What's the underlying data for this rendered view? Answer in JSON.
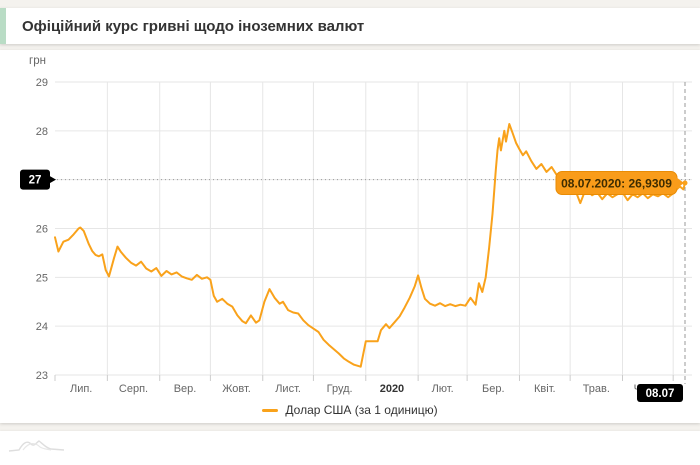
{
  "header": {
    "title": "Офіційний курс гривні щодо іноземних валют"
  },
  "colors": {
    "line": "#f9a21b",
    "grid": "#e6e6e6",
    "tick": "#cccccc",
    "axis_text": "#666666",
    "crosshair": "#999999",
    "crosshair_label_bg": "#000000",
    "crosshair_label_text": "#ffffff",
    "tooltip_bg": "#f99c1a",
    "tooltip_border": "#e98c05",
    "tooltip_text": "#3e2c00",
    "accent_strip": "#b9dcc5"
  },
  "chart_data": {
    "type": "line",
    "title": "Офіційний курс гривні щодо іноземних валют",
    "y_axis_title": "грн",
    "ylim": [
      23,
      29
    ],
    "y_ticks": [
      23,
      24,
      25,
      26,
      27,
      28,
      29
    ],
    "grid": true,
    "legend_position": "bottom-center",
    "x_range_days": 373,
    "x_start_date": "01.07.2019",
    "x_end_date": "08.07.2020",
    "month_boundaries_days": [
      0,
      31,
      62,
      92,
      123,
      153,
      184,
      215,
      244,
      275,
      305,
      336,
      366
    ],
    "x_tick_labels": [
      "Лип.",
      "Серп.",
      "Вер.",
      "Жовт.",
      "Лист.",
      "Груд.",
      "2020",
      "Лют.",
      "Бер.",
      "Квіт.",
      "Трав.",
      "Черв."
    ],
    "series": [
      {
        "name": "Долар США (за 1 одиницю)",
        "color": "#f9a21b",
        "points": [
          [
            0,
            25.82
          ],
          [
            2,
            25.53
          ],
          [
            5,
            25.73
          ],
          [
            8,
            25.77
          ],
          [
            11,
            25.88
          ],
          [
            14,
            26.0
          ],
          [
            15,
            26.02
          ],
          [
            17,
            25.95
          ],
          [
            20,
            25.68
          ],
          [
            22,
            25.54
          ],
          [
            24,
            25.46
          ],
          [
            26,
            25.43
          ],
          [
            28,
            25.47
          ],
          [
            30,
            25.15
          ],
          [
            32,
            25.02
          ],
          [
            35,
            25.4
          ],
          [
            37,
            25.63
          ],
          [
            39,
            25.52
          ],
          [
            42,
            25.4
          ],
          [
            45,
            25.3
          ],
          [
            48,
            25.24
          ],
          [
            51,
            25.32
          ],
          [
            54,
            25.18
          ],
          [
            57,
            25.12
          ],
          [
            60,
            25.19
          ],
          [
            63,
            25.03
          ],
          [
            66,
            25.13
          ],
          [
            69,
            25.06
          ],
          [
            72,
            25.1
          ],
          [
            75,
            25.02
          ],
          [
            78,
            24.98
          ],
          [
            81,
            24.95
          ],
          [
            84,
            25.05
          ],
          [
            87,
            24.97
          ],
          [
            90,
            25.0
          ],
          [
            92,
            24.95
          ],
          [
            94,
            24.62
          ],
          [
            96,
            24.5
          ],
          [
            99,
            24.56
          ],
          [
            102,
            24.46
          ],
          [
            105,
            24.4
          ],
          [
            108,
            24.22
          ],
          [
            111,
            24.1
          ],
          [
            113,
            24.06
          ],
          [
            116,
            24.22
          ],
          [
            119,
            24.07
          ],
          [
            121,
            24.12
          ],
          [
            124,
            24.5
          ],
          [
            127,
            24.76
          ],
          [
            130,
            24.58
          ],
          [
            133,
            24.46
          ],
          [
            135,
            24.5
          ],
          [
            138,
            24.33
          ],
          [
            141,
            24.28
          ],
          [
            144,
            24.26
          ],
          [
            147,
            24.12
          ],
          [
            150,
            24.02
          ],
          [
            153,
            23.95
          ],
          [
            156,
            23.88
          ],
          [
            159,
            23.72
          ],
          [
            162,
            23.62
          ],
          [
            165,
            23.53
          ],
          [
            168,
            23.44
          ],
          [
            171,
            23.34
          ],
          [
            174,
            23.27
          ],
          [
            177,
            23.21
          ],
          [
            181,
            23.17
          ],
          [
            184,
            23.69
          ],
          [
            191,
            23.69
          ],
          [
            193,
            23.92
          ],
          [
            196,
            24.04
          ],
          [
            198,
            23.96
          ],
          [
            201,
            24.08
          ],
          [
            204,
            24.2
          ],
          [
            207,
            24.38
          ],
          [
            210,
            24.58
          ],
          [
            213,
            24.82
          ],
          [
            215,
            25.04
          ],
          [
            217,
            24.78
          ],
          [
            219,
            24.56
          ],
          [
            222,
            24.46
          ],
          [
            225,
            24.42
          ],
          [
            228,
            24.47
          ],
          [
            231,
            24.41
          ],
          [
            234,
            24.45
          ],
          [
            237,
            24.41
          ],
          [
            240,
            24.44
          ],
          [
            243,
            24.42
          ],
          [
            246,
            24.58
          ],
          [
            249,
            24.44
          ],
          [
            251,
            24.88
          ],
          [
            253,
            24.7
          ],
          [
            255,
            25.0
          ],
          [
            257,
            25.6
          ],
          [
            259,
            26.3
          ],
          [
            261,
            27.2
          ],
          [
            262,
            27.6
          ],
          [
            263,
            27.85
          ],
          [
            264,
            27.6
          ],
          [
            266,
            28.0
          ],
          [
            267,
            27.78
          ],
          [
            269,
            28.14
          ],
          [
            271,
            27.95
          ],
          [
            273,
            27.75
          ],
          [
            275,
            27.62
          ],
          [
            277,
            27.5
          ],
          [
            279,
            27.58
          ],
          [
            282,
            27.38
          ],
          [
            285,
            27.22
          ],
          [
            288,
            27.32
          ],
          [
            291,
            27.16
          ],
          [
            294,
            27.26
          ],
          [
            297,
            27.1
          ],
          [
            300,
            27.04
          ],
          [
            303,
            27.12
          ],
          [
            306,
            27.0
          ],
          [
            309,
            26.7
          ],
          [
            311,
            26.52
          ],
          [
            313,
            26.7
          ],
          [
            315,
            26.78
          ],
          [
            318,
            26.68
          ],
          [
            321,
            26.74
          ],
          [
            324,
            26.6
          ],
          [
            327,
            26.72
          ],
          [
            330,
            26.64
          ],
          [
            333,
            26.7
          ],
          [
            336,
            26.74
          ],
          [
            339,
            26.58
          ],
          [
            342,
            26.7
          ],
          [
            345,
            26.64
          ],
          [
            348,
            26.72
          ],
          [
            351,
            26.62
          ],
          [
            354,
            26.7
          ],
          [
            357,
            26.66
          ],
          [
            360,
            26.72
          ],
          [
            363,
            26.64
          ],
          [
            366,
            26.72
          ],
          [
            368,
            26.8
          ],
          [
            370,
            26.86
          ],
          [
            372,
            26.8
          ],
          [
            373,
            26.9309
          ]
        ]
      }
    ],
    "crosshair": {
      "y_label": "27",
      "x_label": "08.07",
      "x_day": 373,
      "point_value": 26.9309
    },
    "tooltip": {
      "text": "08.07.2020: 26,9309"
    }
  }
}
